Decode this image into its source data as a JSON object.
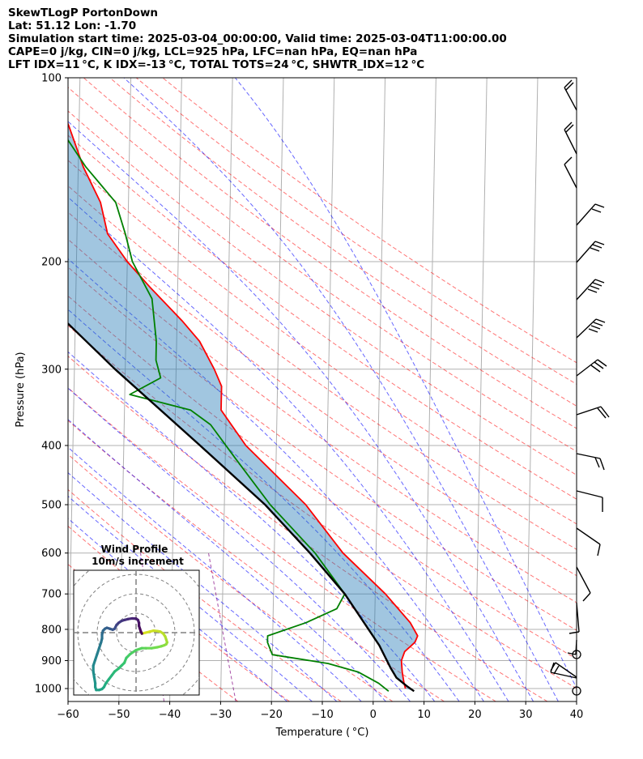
{
  "header": {
    "line1": "SkewTLogP PortonDown",
    "line2": "Lat: 51.12   Lon: -1.70",
    "line3": "Simulation start time: 2025-03-04_00:00:00, Valid time: 2025-03-04T11:00:00.00",
    "line4": "CAPE=0 j/kg, CIN=0 j/kg, LCL=925 hPa, LFC=nan hPa, EQ=nan hPa",
    "line5": "LFT IDX=11 °C, K IDX=-13 °C, TOTAL TOTS=24 °C, SHWTR_IDX=12 °C"
  },
  "chart_data": {
    "type": "line",
    "xlabel": "Temperature ( °C)",
    "ylabel": "Pressure (hPa)",
    "xlim": [
      -60,
      40
    ],
    "ylim": [
      1050,
      100
    ],
    "yscale": "log",
    "skew": true,
    "grid": true,
    "x_ticks": [
      -60,
      -50,
      -40,
      -30,
      -20,
      -10,
      0,
      10,
      20,
      30,
      40
    ],
    "x_tick_labels": [
      "−60",
      "−50",
      "−40",
      "−30",
      "−20",
      "−10",
      "0",
      "10",
      "20",
      "30",
      "40"
    ],
    "y_ticks": [
      100,
      200,
      300,
      400,
      500,
      600,
      700,
      800,
      900,
      1000
    ],
    "y_tick_labels": [
      "100",
      "200",
      "300",
      "400",
      "500",
      "600",
      "700",
      "800",
      "900",
      "1000"
    ],
    "colors": {
      "temperature": "#ff0000",
      "dewpoint": "#008000",
      "parcel": "#000000",
      "cape_cin_fill": "#1f77b4",
      "dry_adiabats": "#ff0000",
      "moist_adiabats": "#0000ff",
      "mixing_ratio": "#800080"
    },
    "series": [
      {
        "key": "temperature",
        "points": [
          [
            1000,
            6.3
          ],
          [
            980,
            6.0
          ],
          [
            940,
            5.6
          ],
          [
            900,
            5.4
          ],
          [
            870,
            6.0
          ],
          [
            840,
            8.0
          ],
          [
            820,
            8.5
          ],
          [
            780,
            7.0
          ],
          [
            700,
            2.0
          ],
          [
            600,
            -6.5
          ],
          [
            500,
            -14.0
          ],
          [
            400,
            -26.0
          ],
          [
            350,
            -31.0
          ],
          [
            320,
            -31.0
          ],
          [
            300,
            -32.5
          ],
          [
            270,
            -35.5
          ],
          [
            250,
            -39.0
          ],
          [
            220,
            -45.5
          ],
          [
            200,
            -50.0
          ],
          [
            180,
            -54.0
          ],
          [
            160,
            -55.5
          ],
          [
            140,
            -59.0
          ],
          [
            120,
            -62.0
          ],
          [
            100,
            -66.0
          ]
        ]
      },
      {
        "key": "dewpoint",
        "points": [
          [
            1010,
            3.0
          ],
          [
            980,
            1.0
          ],
          [
            940,
            -3.0
          ],
          [
            910,
            -9.0
          ],
          [
            880,
            -20.0
          ],
          [
            840,
            -21.0
          ],
          [
            820,
            -21.0
          ],
          [
            780,
            -13.5
          ],
          [
            740,
            -7.5
          ],
          [
            700,
            -6.0
          ],
          [
            600,
            -12.0
          ],
          [
            500,
            -21.0
          ],
          [
            420,
            -28.0
          ],
          [
            370,
            -33.0
          ],
          [
            350,
            -37.0
          ],
          [
            330,
            -49.0
          ],
          [
            310,
            -43.0
          ],
          [
            290,
            -44.0
          ],
          [
            270,
            -44.0
          ],
          [
            230,
            -45.0
          ],
          [
            200,
            -49.0
          ],
          [
            180,
            -50.5
          ],
          [
            160,
            -52.5
          ],
          [
            140,
            -58.5
          ],
          [
            120,
            -64.0
          ],
          [
            100,
            -71.0
          ]
        ]
      },
      {
        "key": "parcel",
        "points": [
          [
            1010,
            8.0
          ],
          [
            990,
            6.5
          ],
          [
            960,
            4.5
          ],
          [
            925,
            3.3
          ],
          [
            850,
            1.0
          ],
          [
            700,
            -6.0
          ],
          [
            600,
            -13.0
          ],
          [
            500,
            -22.0
          ],
          [
            400,
            -35.0
          ],
          [
            300,
            -52.0
          ],
          [
            250,
            -62.0
          ],
          [
            200,
            -75.0
          ],
          [
            150,
            -90.0
          ],
          [
            100,
            -109.0
          ]
        ]
      }
    ],
    "wind_barbs": [
      {
        "p": 100
      },
      {
        "p": 115
      },
      {
        "p": 135
      },
      {
        "p": 160
      },
      {
        "p": 185
      },
      {
        "p": 210
      },
      {
        "p": 240
      },
      {
        "p": 275
      },
      {
        "p": 320
      },
      {
        "p": 370
      },
      {
        "p": 430
      },
      {
        "p": 500
      },
      {
        "p": 580
      },
      {
        "p": 660
      },
      {
        "p": 760
      },
      {
        "p": 830
      },
      {
        "p": 880
      },
      {
        "p": 950
      },
      {
        "p": 1000
      }
    ],
    "hodograph": {
      "title": "Wind Profile",
      "subtitle": "10m/s increment",
      "ring_increment_ms": 10,
      "points": [
        [
          3,
          -0.5
        ],
        [
          5,
          0
        ],
        [
          7,
          0.5
        ],
        [
          9,
          1
        ],
        [
          11,
          0.8
        ],
        [
          12.5,
          0.5
        ],
        [
          14,
          -0.5
        ],
        [
          15,
          -2
        ],
        [
          15.5,
          -3.5
        ],
        [
          16,
          -5
        ],
        [
          15.5,
          -6
        ],
        [
          14.5,
          -6.5
        ],
        [
          13,
          -7
        ],
        [
          11,
          -7.5
        ],
        [
          8,
          -8
        ],
        [
          5,
          -8
        ],
        [
          3,
          -8
        ],
        [
          0,
          -9
        ],
        [
          -3,
          -11
        ],
        [
          -5,
          -13
        ],
        [
          -6,
          -15.5
        ],
        [
          -7.5,
          -17
        ],
        [
          -9,
          -18.5
        ],
        [
          -11,
          -20
        ],
        [
          -12.5,
          -22
        ],
        [
          -14,
          -24
        ],
        [
          -15.5,
          -26
        ],
        [
          -16.5,
          -28
        ],
        [
          -17.5,
          -29
        ],
        [
          -19,
          -29.5
        ],
        [
          -20.5,
          -29.5
        ],
        [
          -21,
          -28
        ],
        [
          -21,
          -26
        ],
        [
          -21.5,
          -23
        ],
        [
          -22,
          -20
        ],
        [
          -22,
          -17
        ],
        [
          -21,
          -14
        ],
        [
          -20,
          -11
        ],
        [
          -19,
          -8
        ],
        [
          -18,
          -5
        ],
        [
          -17.5,
          -3
        ],
        [
          -17.5,
          -1
        ],
        [
          -17,
          1
        ],
        [
          -16,
          2
        ],
        [
          -15,
          2.5
        ],
        [
          -13.5,
          2
        ],
        [
          -12,
          1.5
        ],
        [
          -11,
          2
        ],
        [
          -10.5,
          3
        ],
        [
          -10,
          4
        ],
        [
          -9,
          5
        ],
        [
          -7.5,
          6
        ],
        [
          -6,
          6.5
        ],
        [
          -4,
          7
        ],
        [
          -2,
          7.3
        ],
        [
          0,
          7.2
        ],
        [
          1,
          6.5
        ],
        [
          1.5,
          5
        ],
        [
          1.5,
          3.5
        ],
        [
          2,
          2
        ],
        [
          2.5,
          0.5
        ],
        [
          3,
          -0.5
        ]
      ]
    }
  }
}
